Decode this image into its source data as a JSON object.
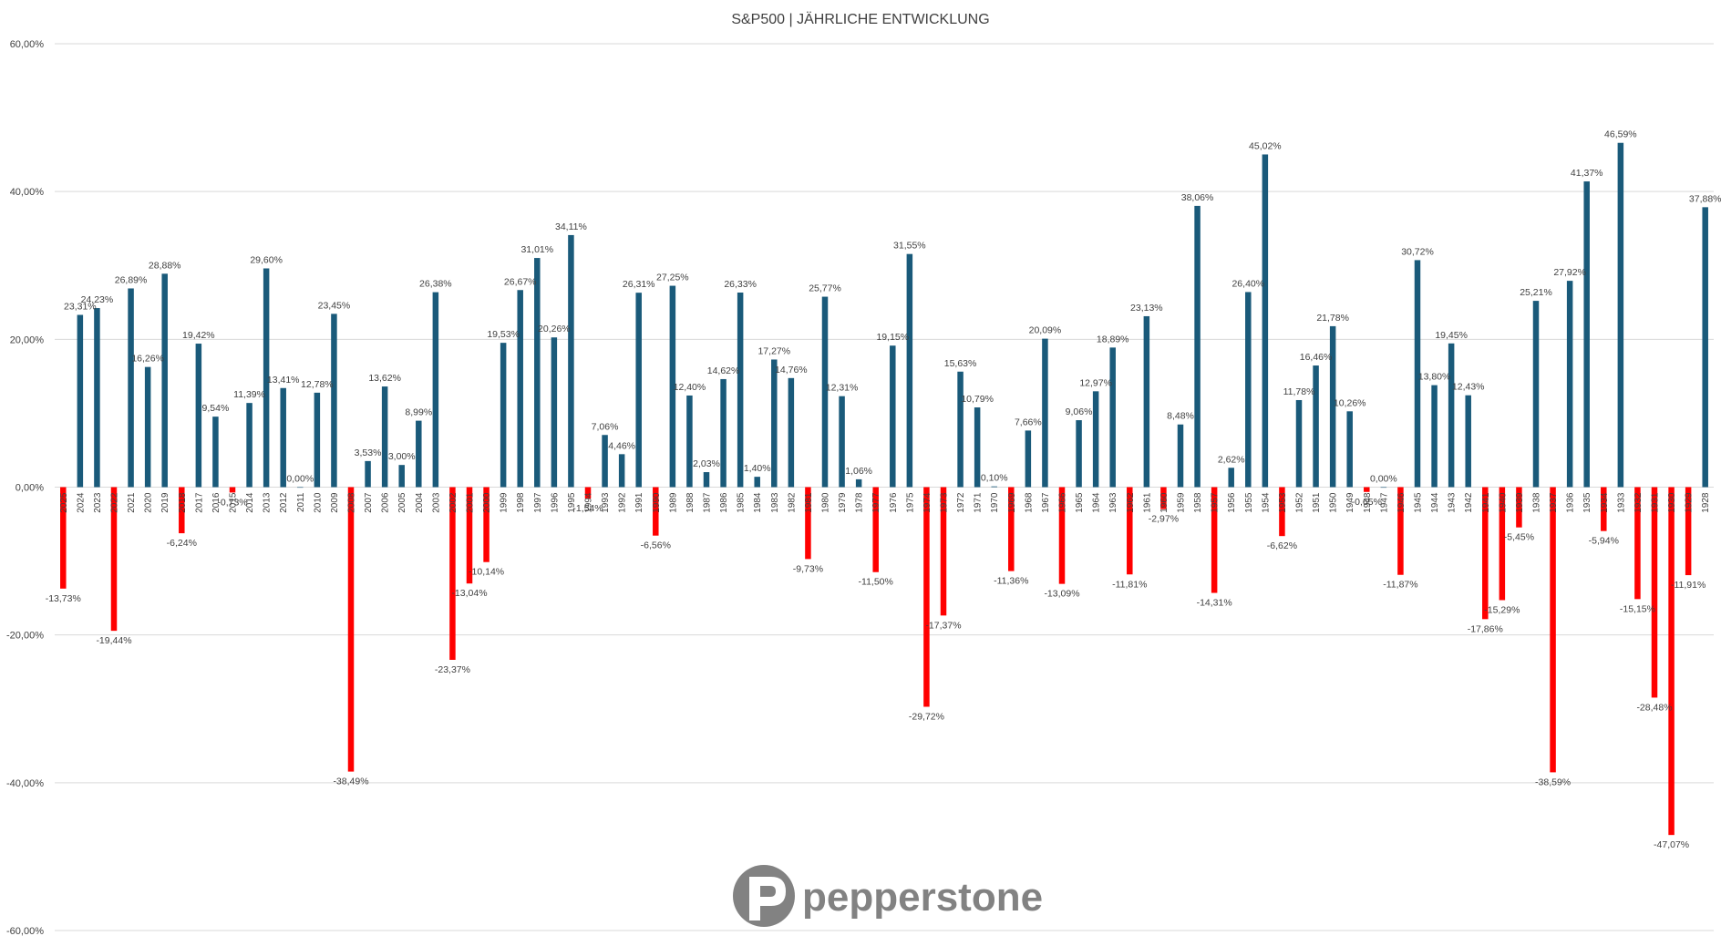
{
  "chart_data": {
    "type": "bar",
    "title": "S&P500 | JÄHRLICHE ENTWICKLUNG",
    "xlabel": "",
    "ylabel": "",
    "ylim": [
      -60,
      60
    ],
    "yticks": [
      -60,
      -40,
      -20,
      0,
      20,
      40,
      60
    ],
    "ytick_labels": [
      "-60,00%",
      "-40,00%",
      "-20,00%",
      "0,00%",
      "20,00%",
      "40,00%",
      "60,00%"
    ],
    "grid": true,
    "legend": "none",
    "colors": {
      "positive": "#1a5a7a",
      "negative": "#ff0000"
    },
    "categories": [
      "2025",
      "2024",
      "2023",
      "2022",
      "2021",
      "2020",
      "2019",
      "2018",
      "2017",
      "2016",
      "2015",
      "2014",
      "2013",
      "2012",
      "2011",
      "2010",
      "2009",
      "2008",
      "2007",
      "2006",
      "2005",
      "2004",
      "2003",
      "2002",
      "2001",
      "2000",
      "1999",
      "1998",
      "1997",
      "1996",
      "1995",
      "1994",
      "1993",
      "1992",
      "1991",
      "1990",
      "1989",
      "1988",
      "1987",
      "1986",
      "1985",
      "1984",
      "1983",
      "1982",
      "1981",
      "1980",
      "1979",
      "1978",
      "1977",
      "1976",
      "1975",
      "1974",
      "1973",
      "1972",
      "1971",
      "1970",
      "1969",
      "1968",
      "1967",
      "1966",
      "1965",
      "1964",
      "1963",
      "1962",
      "1961",
      "1960",
      "1959",
      "1958",
      "1957",
      "1956",
      "1955",
      "1954",
      "1953",
      "1952",
      "1951",
      "1950",
      "1949",
      "1948",
      "1947",
      "1946",
      "1945",
      "1944",
      "1943",
      "1942",
      "1941",
      "1940",
      "1939",
      "1938",
      "1937",
      "1936",
      "1935",
      "1934",
      "1933",
      "1932",
      "1931",
      "1930",
      "1929",
      "1928"
    ],
    "values": [
      -13.73,
      23.31,
      24.23,
      -19.44,
      26.89,
      16.26,
      28.88,
      -6.24,
      19.42,
      9.54,
      -0.73,
      11.39,
      29.6,
      13.41,
      0.0,
      12.78,
      23.45,
      -38.49,
      3.53,
      13.62,
      3.0,
      8.99,
      26.38,
      -23.37,
      -13.04,
      -10.14,
      19.53,
      26.67,
      31.01,
      20.26,
      34.11,
      -1.54,
      7.06,
      4.46,
      26.31,
      -6.56,
      27.25,
      12.4,
      2.03,
      14.62,
      26.33,
      1.4,
      17.27,
      14.76,
      -9.73,
      25.77,
      12.31,
      1.06,
      -11.5,
      19.15,
      31.55,
      -29.72,
      -17.37,
      15.63,
      10.79,
      0.1,
      -11.36,
      7.66,
      20.09,
      -13.09,
      9.06,
      12.97,
      18.89,
      -11.81,
      23.13,
      -2.97,
      8.48,
      38.06,
      -14.31,
      2.62,
      26.4,
      45.02,
      -6.62,
      11.78,
      16.46,
      21.78,
      10.26,
      -0.65,
      0.0,
      -11.87,
      30.72,
      13.8,
      19.45,
      12.43,
      -17.86,
      -15.29,
      -5.45,
      25.21,
      -38.59,
      27.92,
      41.37,
      -5.94,
      46.59,
      -15.15,
      -28.48,
      -47.07,
      -11.91,
      37.88
    ],
    "value_labels": [
      "-13,73%",
      "23,31%",
      "24,23%",
      "-19,44%",
      "26,89%",
      "16,26%",
      "28,88%",
      "-6,24%",
      "19,42%",
      "9,54%",
      "-0,73%",
      "11,39%",
      "29,60%",
      "13,41%",
      "0,00%",
      "12,78%",
      "23,45%",
      "-38,49%",
      "3,53%",
      "13,62%",
      "3,00%",
      "8,99%",
      "26,38%",
      "-23,37%",
      "-13,04%",
      "-10,14%",
      "19,53%",
      "26,67%",
      "31,01%",
      "20,26%",
      "34,11%",
      "-1,54%",
      "7,06%",
      "4,46%",
      "26,31%",
      "-6,56%",
      "27,25%",
      "12,40%",
      "2,03%",
      "14,62%",
      "26,33%",
      "1,40%",
      "17,27%",
      "14,76%",
      "-9,73%",
      "25,77%",
      "12,31%",
      "1,06%",
      "-11,50%",
      "19,15%",
      "31,55%",
      "-29,72%",
      "-17,37%",
      "15,63%",
      "10,79%",
      "0,10%",
      "-11,36%",
      "7,66%",
      "20,09%",
      "-13,09%",
      "9,06%",
      "12,97%",
      "18,89%",
      "-11,81%",
      "23,13%",
      "-2,97%",
      "8,48%",
      "38,06%",
      "-14,31%",
      "2,62%",
      "26,40%",
      "45,02%",
      "-6,62%",
      "11,78%",
      "16,46%",
      "21,78%",
      "10,26%",
      "-0,65%",
      "0,00%",
      "-11,87%",
      "30,72%",
      "13,80%",
      "19,45%",
      "12,43%",
      "-17,86%",
      "-15,29%",
      "-5,45%",
      "25,21%",
      "-38,59%",
      "27,92%",
      "41,37%",
      "-5,94%",
      "46,59%",
      "-15,15%",
      "-28,48%",
      "-47,07%",
      "-11,91%",
      "37,88%"
    ]
  },
  "logo": {
    "text": "pepperstone",
    "icon": "pepperstone-logo-icon"
  }
}
